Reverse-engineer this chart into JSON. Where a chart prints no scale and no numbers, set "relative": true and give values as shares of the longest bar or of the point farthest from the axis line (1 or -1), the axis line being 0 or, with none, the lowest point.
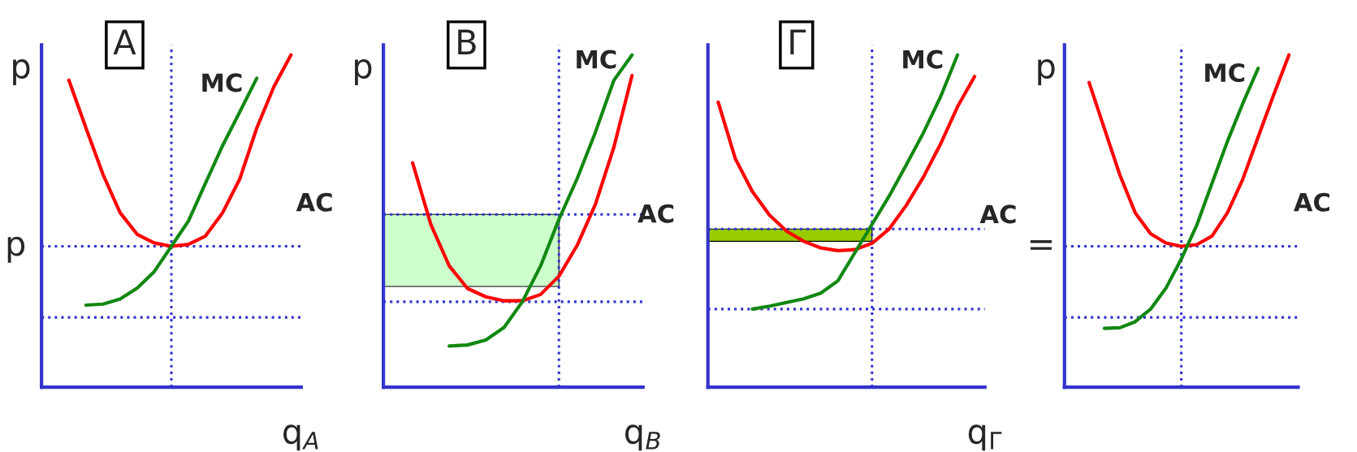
{
  "chart_data": [
    {
      "type": "line",
      "title": "A",
      "ylabel": "p",
      "xlabel": "q$_{A}$",
      "relative": true,
      "legend": false,
      "line_style": "solid",
      "marker": "none",
      "categories": [
        null,
        null,
        null,
        null,
        null,
        null,
        null,
        null,
        null,
        null,
        null,
        null,
        null,
        null,
        null
      ],
      "series": [
        {
          "name": "AC",
          "color": "#ff0000",
          "values": [
            null,
            0.924,
            0.78,
            0.64,
            0.525,
            0.46,
            0.434,
            0.424,
            0.43,
            0.455,
            0.525,
            0.626,
            0.78,
            0.904,
            1.0
          ]
        },
        {
          "name": "MC",
          "color": "#118811",
          "values": [
            null,
            null,
            0.247,
            0.25,
            0.265,
            0.298,
            0.348,
            0.424,
            0.5,
            0.614,
            0.727,
            0.828,
            0.93,
            null,
            null
          ]
        }
      ],
      "ref_lines": [
        {
          "axis": "y",
          "value": 0.424,
          "color": "#3333cc",
          "line_style": "dotted"
        },
        {
          "axis": "y",
          "value": 0.21,
          "color": "#3333cc",
          "line_style": "dotted"
        }
      ],
      "annotations": [
        "p"
      ]
    },
    {
      "type": "line",
      "title": "B",
      "ylabel": "p",
      "xlabel": "q$_{B}$",
      "relative": true,
      "legend": false,
      "line_style": "solid",
      "marker": "none",
      "categories": [
        null,
        null,
        null,
        null,
        null,
        null,
        null,
        null,
        null,
        null,
        null,
        null,
        null,
        null
      ],
      "series": [
        {
          "name": "AC",
          "color": "#ff0000",
          "values": [
            null,
            0.675,
            0.489,
            0.365,
            0.297,
            0.272,
            0.26,
            0.26,
            0.279,
            0.334,
            0.427,
            0.551,
            0.721,
            0.938
          ]
        },
        {
          "name": "MC",
          "color": "#118811",
          "values": [
            null,
            null,
            null,
            0.124,
            0.127,
            0.142,
            0.18,
            0.257,
            0.365,
            0.505,
            0.628,
            0.768,
            0.923,
            1.0
          ]
        }
      ],
      "ref_lines": [
        {
          "axis": "y",
          "value": 0.52,
          "color": "#3333cc",
          "line_style": "dotted"
        },
        {
          "axis": "y",
          "value": 0.257,
          "color": "#3333cc",
          "line_style": "dotted"
        }
      ],
      "bands": [
        {
          "axis": "y",
          "from": 0.303,
          "to": 0.52,
          "color": "#ccffcc"
        }
      ]
    },
    {
      "type": "line",
      "title": "Γ",
      "xlabel": "q$_{Γ}$",
      "relative": true,
      "legend": false,
      "line_style": "solid",
      "marker": "none",
      "categories": [
        null,
        null,
        null,
        null,
        null,
        null,
        null,
        null,
        null,
        null,
        null,
        null,
        null,
        null,
        null,
        null
      ],
      "series": [
        {
          "name": "AC",
          "color": "#ff0000",
          "values": [
            0.858,
            0.688,
            0.589,
            0.518,
            0.47,
            0.439,
            0.419,
            0.411,
            0.414,
            0.433,
            0.476,
            0.547,
            0.632,
            0.731,
            0.844,
            0.935
          ]
        },
        {
          "name": "MC",
          "color": "#118811",
          "values": [
            null,
            null,
            0.235,
            0.244,
            0.255,
            0.266,
            0.283,
            0.32,
            0.405,
            0.49,
            0.575,
            0.669,
            0.765,
            0.873,
            1.0,
            null
          ]
        }
      ],
      "ref_lines": [
        {
          "axis": "y",
          "value": 0.476,
          "color": "#3333cc",
          "line_style": "dotted"
        },
        {
          "axis": "y",
          "value": 0.235,
          "color": "#3333cc",
          "line_style": "dotted"
        }
      ],
      "bands": [
        {
          "axis": "y",
          "from": 0.439,
          "to": 0.476,
          "color": "#99cc00"
        }
      ]
    },
    {
      "type": "line",
      "ylabel": "p",
      "relative": true,
      "legend": false,
      "line_style": "solid",
      "marker": "none",
      "categories": [
        null,
        null,
        null,
        null,
        null,
        null,
        null,
        null,
        null,
        null,
        null,
        null,
        null,
        null,
        null
      ],
      "series": [
        {
          "name": "AC",
          "color": "#ff0000",
          "values": [
            null,
            0.917,
            0.778,
            0.639,
            0.525,
            0.462,
            0.434,
            0.424,
            0.429,
            0.455,
            0.525,
            0.626,
            0.753,
            0.879,
            1.0
          ]
        },
        {
          "name": "MC",
          "color": "#118811",
          "values": [
            null,
            null,
            0.177,
            0.179,
            0.197,
            0.235,
            0.298,
            0.386,
            0.487,
            0.614,
            0.74,
            0.854,
            0.96,
            null,
            null
          ]
        }
      ],
      "ref_lines": [
        {
          "axis": "y",
          "value": 0.424,
          "color": "#3333cc",
          "line_style": "dotted"
        },
        {
          "axis": "y",
          "value": 0.21,
          "color": "#3333cc",
          "line_style": "dotted"
        }
      ],
      "annotations": [
        "="
      ]
    }
  ]
}
